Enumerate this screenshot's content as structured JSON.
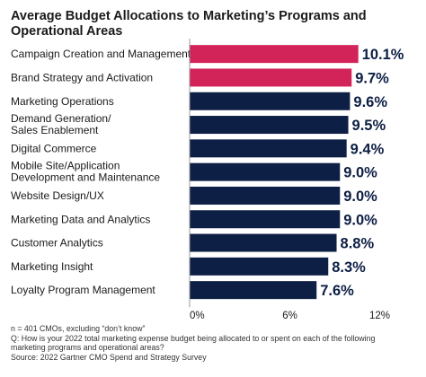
{
  "chart_data": {
    "type": "bar",
    "orientation": "horizontal",
    "title": "Average Budget Allocations to Marketing’s Programs and Operational Areas",
    "categories": [
      [
        "Campaign Creation and Management"
      ],
      [
        "Brand Strategy and Activation"
      ],
      [
        "Marketing Operations"
      ],
      [
        "Demand Generation/",
        "Sales Enablement"
      ],
      [
        "Digital Commerce"
      ],
      [
        "Mobile Site/Application",
        "Development and Maintenance"
      ],
      [
        "Website Design/UX"
      ],
      [
        "Marketing Data and Analytics"
      ],
      [
        "Customer Analytics"
      ],
      [
        "Marketing Insight"
      ],
      [
        "Loyalty Program Management"
      ]
    ],
    "values": [
      10.1,
      9.7,
      9.6,
      9.5,
      9.4,
      9.0,
      9.0,
      9.0,
      8.8,
      8.3,
      7.6
    ],
    "value_labels": [
      "10.1%",
      "9.7%",
      "9.6%",
      "9.5%",
      "9.4%",
      "9.0%",
      "9.0%",
      "9.0%",
      "8.8%",
      "8.3%",
      "7.6%"
    ],
    "xlim": [
      0,
      12
    ],
    "xticks": [
      0,
      6,
      12
    ],
    "xtick_labels": [
      "0%",
      "6%",
      "12%"
    ],
    "highlight_count": 2,
    "colors": {
      "highlight": "#d3245a",
      "default": "#0d1f44",
      "axis": "#9a9a9a"
    },
    "grid": false
  },
  "footnotes": [
    "n = 401 CMOs, excluding “don’t know”",
    "Q: How is your 2022 total marketing expense budget being allocated to or spent on each of the following",
    "marketing programs and operational areas?",
    "Source: 2022 Gartner CMO Spend and Strategy Survey"
  ]
}
